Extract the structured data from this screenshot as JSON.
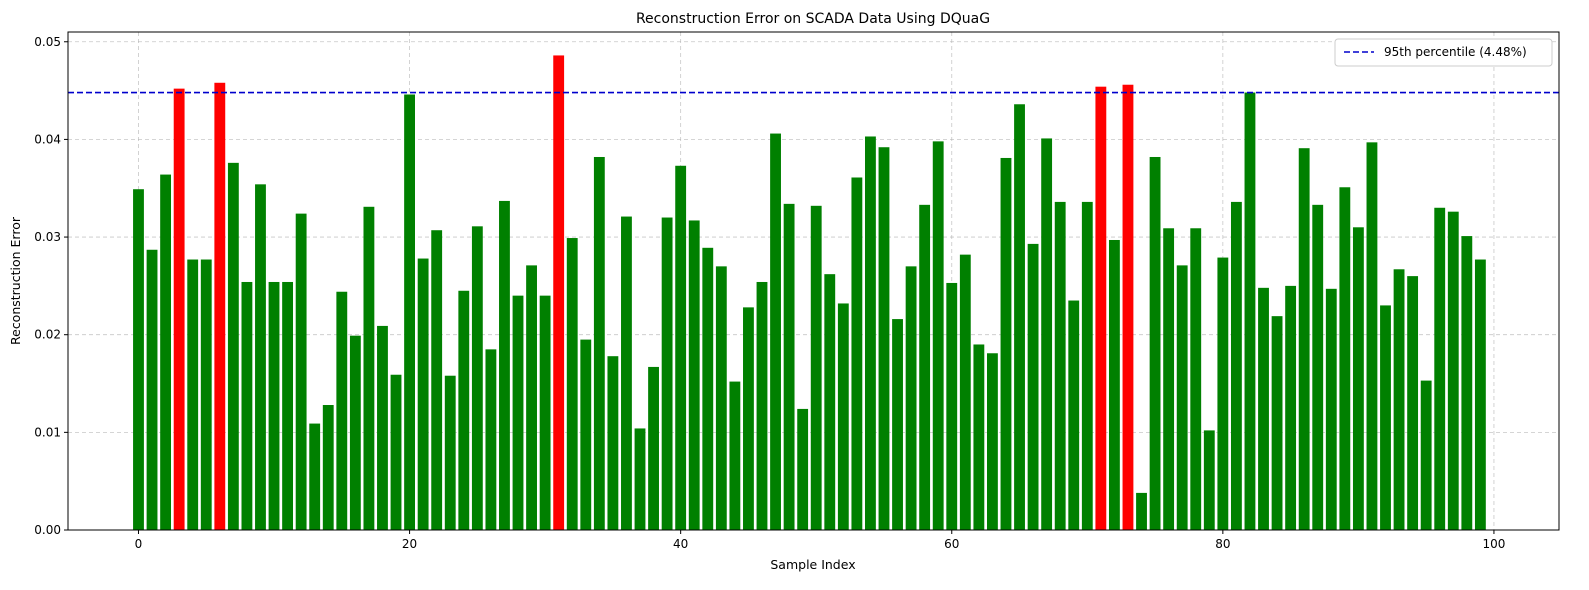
{
  "chart_data": {
    "type": "bar",
    "title": "Reconstruction Error on SCADA Data Using DQuaG",
    "xlabel": "Sample Index",
    "ylabel": "Reconstruction Error",
    "xlim": [
      -5.2,
      104.8
    ],
    "ylim": [
      0,
      0.051
    ],
    "xticks": [
      0,
      20,
      40,
      60,
      80,
      100
    ],
    "xtick_labels": [
      "0",
      "20",
      "40",
      "60",
      "80",
      "100"
    ],
    "yticks": [
      0,
      0.01,
      0.02,
      0.03,
      0.04,
      0.05
    ],
    "ytick_labels": [
      "0.00",
      "0.01",
      "0.02",
      "0.03",
      "0.04",
      "0.05"
    ],
    "grid": true,
    "legend_position": "top-right",
    "colors": {
      "normal": "#008000",
      "anomaly": "#ff0000",
      "threshold": "#0000cc"
    },
    "threshold": {
      "label": "95th percentile (4.48%)",
      "value": 0.0448
    },
    "x": [
      0,
      1,
      2,
      3,
      4,
      5,
      6,
      7,
      8,
      9,
      10,
      11,
      12,
      13,
      14,
      15,
      16,
      17,
      18,
      19,
      20,
      21,
      22,
      23,
      24,
      25,
      26,
      27,
      28,
      29,
      30,
      31,
      32,
      33,
      34,
      35,
      36,
      37,
      38,
      39,
      40,
      41,
      42,
      43,
      44,
      45,
      46,
      47,
      48,
      49,
      50,
      51,
      52,
      53,
      54,
      55,
      56,
      57,
      58,
      59,
      60,
      61,
      62,
      63,
      64,
      65,
      66,
      67,
      68,
      69,
      70,
      71,
      72,
      73,
      74,
      75,
      76,
      77,
      78,
      79,
      80,
      81,
      82,
      83,
      84,
      85,
      86,
      87,
      88,
      89,
      90,
      91,
      92,
      93,
      94,
      95,
      96,
      97,
      98,
      99
    ],
    "values": [
      0.0349,
      0.0287,
      0.0364,
      0.0452,
      0.0277,
      0.0277,
      0.0458,
      0.0376,
      0.0254,
      0.0354,
      0.0254,
      0.0254,
      0.0324,
      0.0109,
      0.0128,
      0.0244,
      0.0199,
      0.0331,
      0.0209,
      0.0159,
      0.0446,
      0.0278,
      0.0307,
      0.0158,
      0.0245,
      0.0311,
      0.0185,
      0.0337,
      0.024,
      0.0271,
      0.024,
      0.0486,
      0.0299,
      0.0195,
      0.0382,
      0.0178,
      0.0321,
      0.0104,
      0.0167,
      0.032,
      0.0373,
      0.0317,
      0.0289,
      0.027,
      0.0152,
      0.0228,
      0.0254,
      0.0406,
      0.0334,
      0.0124,
      0.0332,
      0.0262,
      0.0232,
      0.0361,
      0.0403,
      0.0392,
      0.0216,
      0.027,
      0.0333,
      0.0398,
      0.0253,
      0.0282,
      0.019,
      0.0181,
      0.0381,
      0.0436,
      0.0293,
      0.0401,
      0.0336,
      0.0235,
      0.0336,
      0.0454,
      0.0297,
      0.0456,
      0.0038,
      0.0382,
      0.0309,
      0.0271,
      0.0309,
      0.0102,
      0.0279,
      0.0336,
      0.0448,
      0.0248,
      0.0219,
      0.025,
      0.0391,
      0.0333,
      0.0247,
      0.0351,
      0.031,
      0.0397,
      0.023,
      0.0267,
      0.026,
      0.0153,
      0.033,
      0.0326,
      0.0301,
      0.0277
    ]
  }
}
